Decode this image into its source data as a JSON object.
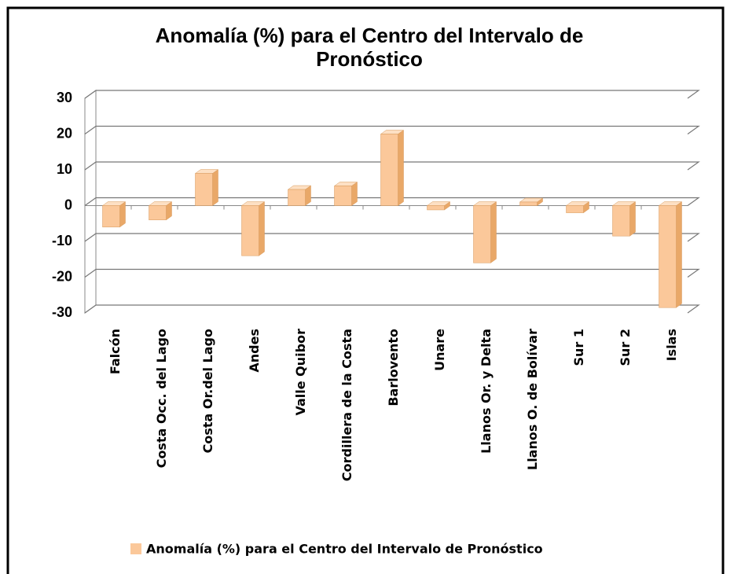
{
  "chart_data": {
    "type": "bar",
    "title": "Anomalía (%) para el Centro del Intervalo de Pronóstico",
    "categories": [
      "Falcón",
      "Costa Occ. del Lago",
      "Costa Or.del Lago",
      "Andes",
      "Valle Quibor",
      "Cordillera de la Costa",
      "Barlovento",
      "Unare",
      "Llanos Or. y Delta",
      "Llanos O. de Bolívar",
      "Sur 1",
      "Sur 2",
      "Islas"
    ],
    "series": [
      {
        "name": "Anomalía (%) para el Centro del Intervalo de Pronóstico",
        "color": "#fbc89a",
        "values": [
          -6,
          -4,
          9,
          -14,
          4.5,
          5.5,
          20,
          -1.2,
          -16,
          1,
          -2,
          -8.5,
          -28.5
        ]
      }
    ],
    "ylim": [
      -30,
      30
    ],
    "yticks": [
      -30,
      -20,
      -10,
      0,
      10,
      20,
      30
    ],
    "grid": true
  }
}
